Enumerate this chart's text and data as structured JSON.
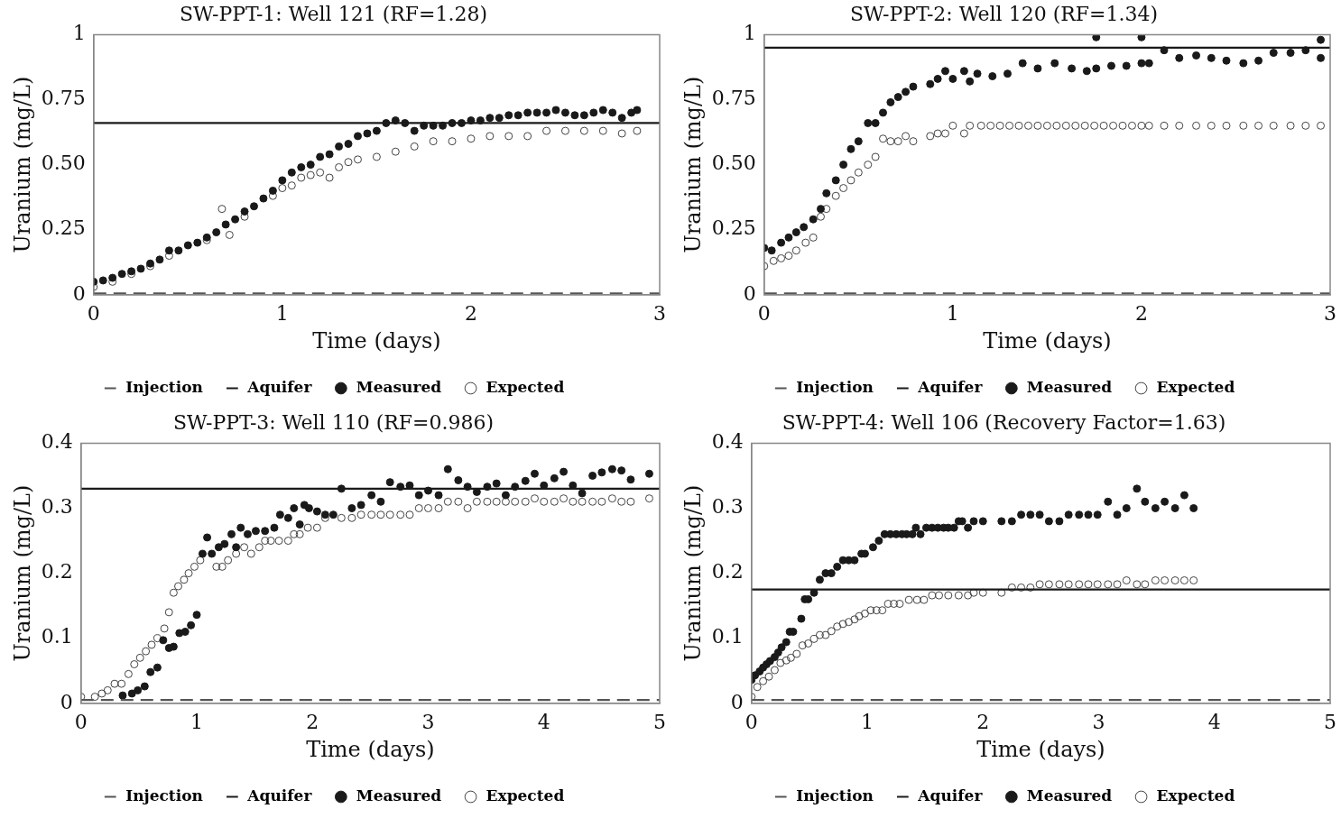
{
  "chart_data": [
    {
      "type": "scatter",
      "title": "SW-PPT-1: Well 121 (RF=1.28)",
      "xlabel": "Time (days)",
      "ylabel": "Uranium (mg/L)",
      "xlim": [
        0,
        3
      ],
      "xticks": [
        0,
        1,
        2,
        3
      ],
      "ylim": [
        0,
        1
      ],
      "yticks": [
        0,
        0.25,
        {
          "value": 0.5,
          "label": "0.50"
        },
        0.75,
        1
      ],
      "grid": false,
      "legend": "bottom",
      "series": [
        {
          "name": "Injection",
          "type": "line",
          "color": "#555555",
          "line_style": "dashed",
          "marker": "none",
          "x": [
            0,
            3
          ],
          "values": [
            0.005,
            0.005
          ]
        },
        {
          "name": "Aquifer",
          "type": "line",
          "color": "#1a1a1a",
          "line_style": "solid",
          "marker": "none",
          "x": [
            0,
            3
          ],
          "values": [
            0.66,
            0.66
          ]
        },
        {
          "name": "Measured",
          "type": "scatter",
          "color": "#1a1a1a",
          "marker": "circle",
          "x": [
            0,
            0.05,
            0.1,
            0.15,
            0.2,
            0.25,
            0.3,
            0.35,
            0.4,
            0.45,
            0.5,
            0.55,
            0.6,
            0.65,
            0.7,
            0.75,
            0.8,
            0.85,
            0.9,
            0.95,
            1.0,
            1.05,
            1.1,
            1.15,
            1.2,
            1.25,
            1.3,
            1.35,
            1.4,
            1.45,
            1.5,
            1.55,
            1.6,
            1.65,
            1.7,
            1.75,
            1.8,
            1.85,
            1.9,
            1.95,
            2.0,
            2.05,
            2.1,
            2.15,
            2.2,
            2.25,
            2.3,
            2.35,
            2.4,
            2.45,
            2.5,
            2.55,
            2.6,
            2.65,
            2.7,
            2.75,
            2.8,
            2.85,
            2.88
          ],
          "values": [
            0.05,
            0.055,
            0.065,
            0.08,
            0.09,
            0.1,
            0.12,
            0.135,
            0.17,
            0.17,
            0.19,
            0.2,
            0.22,
            0.24,
            0.27,
            0.29,
            0.32,
            0.34,
            0.37,
            0.4,
            0.44,
            0.47,
            0.49,
            0.5,
            0.53,
            0.54,
            0.57,
            0.58,
            0.61,
            0.62,
            0.63,
            0.66,
            0.67,
            0.66,
            0.63,
            0.65,
            0.65,
            0.65,
            0.66,
            0.66,
            0.67,
            0.67,
            0.68,
            0.68,
            0.69,
            0.69,
            0.7,
            0.7,
            0.7,
            0.71,
            0.7,
            0.69,
            0.69,
            0.7,
            0.71,
            0.7,
            0.68,
            0.7,
            0.71
          ]
        },
        {
          "name": "Expected",
          "type": "scatter",
          "color": "#444444",
          "marker": "circle",
          "x": [
            0,
            0.1,
            0.2,
            0.3,
            0.4,
            0.5,
            0.6,
            0.68,
            0.72,
            0.8,
            0.9,
            0.95,
            1.0,
            1.05,
            1.1,
            1.15,
            1.2,
            1.25,
            1.3,
            1.35,
            1.4,
            1.5,
            1.6,
            1.7,
            1.8,
            1.9,
            2.0,
            2.1,
            2.2,
            2.3,
            2.4,
            2.5,
            2.6,
            2.7,
            2.8,
            2.88
          ],
          "values": [
            0.03,
            0.05,
            0.08,
            0.11,
            0.15,
            null,
            0.21,
            0.33,
            0.23,
            0.3,
            null,
            0.38,
            0.41,
            0.42,
            0.45,
            0.46,
            0.47,
            0.45,
            0.49,
            0.51,
            0.52,
            0.53,
            0.55,
            0.57,
            0.59,
            0.59,
            0.6,
            0.61,
            0.61,
            0.61,
            0.63,
            0.63,
            0.63,
            0.63,
            0.62,
            0.63
          ]
        }
      ]
    },
    {
      "type": "scatter",
      "title": "SW-PPT-2: Well 120 (RF=1.34)",
      "xlabel": "Time (days)",
      "ylabel": "Uranium (mg/L)",
      "xlim": [
        0,
        3
      ],
      "xticks": [
        0,
        1,
        2,
        3
      ],
      "ylim": [
        0,
        1
      ],
      "yticks": [
        0,
        0.25,
        {
          "value": 0.5,
          "label": "0.50"
        },
        0.75,
        1
      ],
      "grid": false,
      "legend": "bottom",
      "series": [
        {
          "name": "Injection",
          "type": "line",
          "color": "#555555",
          "line_style": "dashed",
          "marker": "none",
          "x": [
            0,
            3
          ],
          "values": [
            0.005,
            0.005
          ]
        },
        {
          "name": "Aquifer",
          "type": "line",
          "color": "#1a1a1a",
          "line_style": "solid",
          "marker": "none",
          "x": [
            0,
            3
          ],
          "values": [
            0.95,
            0.95
          ]
        },
        {
          "name": "Measured",
          "type": "scatter",
          "color": "#1a1a1a",
          "marker": "circle",
          "x": [
            0,
            0.04,
            0.09,
            0.13,
            0.17,
            0.21,
            0.26,
            0.3,
            0.33,
            0.38,
            0.42,
            0.46,
            0.5,
            0.55,
            0.59,
            0.63,
            0.67,
            0.71,
            0.75,
            0.79,
            0.88,
            0.92,
            0.96,
            1.0,
            1.06,
            1.09,
            1.13,
            1.21,
            1.29,
            1.37,
            1.45,
            1.54,
            1.63,
            1.71,
            1.76,
            1.76,
            1.84,
            1.92,
            2.0,
            2.0,
            2.04,
            2.12,
            2.2,
            2.29,
            2.37,
            2.45,
            2.54,
            2.62,
            2.7,
            2.79,
            2.87,
            2.95,
            2.95
          ],
          "values": [
            0.18,
            0.17,
            0.2,
            0.22,
            0.24,
            0.26,
            0.29,
            0.33,
            0.39,
            0.44,
            0.5,
            0.56,
            0.59,
            0.66,
            0.66,
            0.7,
            0.74,
            0.76,
            0.78,
            0.8,
            0.81,
            0.83,
            0.86,
            0.83,
            0.86,
            0.82,
            0.85,
            0.84,
            0.85,
            0.89,
            0.87,
            0.89,
            0.87,
            0.86,
            0.99,
            0.87,
            0.88,
            0.88,
            0.99,
            0.89,
            0.89,
            0.94,
            0.91,
            0.92,
            0.91,
            0.9,
            0.89,
            0.9,
            0.93,
            0.93,
            0.94,
            0.98,
            0.91
          ]
        },
        {
          "name": "Expected",
          "type": "scatter",
          "color": "#444444",
          "marker": "circle",
          "x": [
            0,
            0.05,
            0.09,
            0.13,
            0.17,
            0.22,
            0.26,
            0.3,
            0.33,
            0.38,
            0.42,
            0.46,
            0.5,
            0.55,
            0.59,
            0.63,
            0.67,
            0.71,
            0.75,
            0.79,
            0.88,
            0.92,
            0.96,
            1.0,
            1.06,
            1.09,
            1.15,
            1.2,
            1.25,
            1.3,
            1.35,
            1.4,
            1.45,
            1.5,
            1.55,
            1.6,
            1.65,
            1.7,
            1.75,
            1.8,
            1.85,
            1.9,
            1.95,
            2.0,
            2.04,
            2.12,
            2.2,
            2.29,
            2.37,
            2.45,
            2.54,
            2.62,
            2.7,
            2.79,
            2.87,
            2.95
          ],
          "values": [
            0.11,
            0.13,
            0.14,
            0.15,
            0.17,
            0.2,
            0.22,
            0.3,
            0.33,
            0.38,
            0.41,
            0.44,
            0.47,
            0.5,
            0.53,
            0.6,
            0.59,
            0.59,
            0.61,
            0.59,
            0.61,
            0.62,
            0.62,
            0.65,
            0.62,
            0.65,
            0.65,
            0.65,
            0.65,
            0.65,
            0.65,
            0.65,
            0.65,
            0.65,
            0.65,
            0.65,
            0.65,
            0.65,
            0.65,
            0.65,
            0.65,
            0.65,
            0.65,
            0.65,
            0.65,
            0.65,
            0.65,
            0.65,
            0.65,
            0.65,
            0.65,
            0.65,
            0.65,
            0.65,
            0.65,
            0.65
          ]
        }
      ]
    },
    {
      "type": "scatter",
      "title": "SW-PPT-3: Well 110 (RF=0.986)",
      "xlabel": "Time (days)",
      "ylabel": "Uranium (mg/L)",
      "xlim": [
        0,
        5
      ],
      "xticks": [
        0,
        1,
        2,
        3,
        4,
        5
      ],
      "ylim": [
        0,
        0.4
      ],
      "yticks": [
        0,
        0.1,
        0.2,
        0.3,
        0.4
      ],
      "grid": false,
      "legend": "bottom",
      "series": [
        {
          "name": "Injection",
          "type": "line",
          "color": "#555555",
          "line_style": "dashed",
          "marker": "none",
          "x": [
            0,
            5
          ],
          "values": [
            0.005,
            0.005
          ]
        },
        {
          "name": "Aquifer",
          "type": "line",
          "color": "#1a1a1a",
          "line_style": "solid",
          "marker": "none",
          "x": [
            0,
            5
          ],
          "values": [
            0.33,
            0.33
          ]
        },
        {
          "name": "Measured",
          "type": "scatter",
          "color": "#1a1a1a",
          "marker": "circle",
          "x": [
            0.36,
            0.44,
            0.49,
            0.55,
            0.6,
            0.66,
            0.71,
            0.76,
            0.8,
            0.85,
            0.9,
            0.95,
            1.0,
            1.05,
            1.09,
            1.13,
            1.19,
            1.24,
            1.3,
            1.34,
            1.38,
            1.44,
            1.51,
            1.59,
            1.67,
            1.72,
            1.79,
            1.84,
            1.89,
            1.93,
            1.97,
            2.04,
            2.11,
            2.18,
            2.25,
            2.34,
            2.42,
            2.51,
            2.59,
            2.67,
            2.76,
            2.84,
            2.92,
            3.0,
            3.09,
            3.17,
            3.26,
            3.34,
            3.42,
            3.51,
            3.59,
            3.67,
            3.75,
            3.84,
            3.92,
            4.0,
            4.09,
            4.17,
            4.25,
            4.33,
            4.42,
            4.5,
            4.59,
            4.67,
            4.75,
            4.91
          ],
          "values": [
            0.012,
            0.015,
            0.02,
            0.026,
            0.048,
            0.055,
            0.097,
            0.085,
            0.087,
            0.108,
            0.11,
            0.12,
            0.136,
            0.23,
            0.255,
            0.23,
            0.24,
            0.245,
            0.26,
            0.24,
            0.27,
            0.26,
            0.265,
            0.265,
            0.27,
            0.29,
            0.285,
            0.3,
            0.275,
            0.305,
            0.3,
            0.295,
            0.29,
            0.29,
            0.33,
            0.3,
            0.305,
            0.32,
            0.31,
            0.34,
            0.333,
            0.335,
            0.32,
            0.327,
            0.32,
            0.36,
            0.343,
            0.333,
            0.325,
            0.333,
            0.338,
            0.32,
            0.333,
            0.342,
            0.353,
            0.335,
            0.346,
            0.356,
            0.335,
            0.323,
            0.35,
            0.355,
            0.36,
            0.358,
            0.344,
            0.353
          ]
        },
        {
          "name": "Expected",
          "type": "scatter",
          "color": "#444444",
          "marker": "circle",
          "x": [
            0,
            0.12,
            0.18,
            0.23,
            0.29,
            0.35,
            0.41,
            0.46,
            0.51,
            0.56,
            0.61,
            0.66,
            0.72,
            0.76,
            0.8,
            0.84,
            0.89,
            0.93,
            0.98,
            1.03,
            1.17,
            1.22,
            1.27,
            1.34,
            1.41,
            1.47,
            1.54,
            1.59,
            1.64,
            1.71,
            1.79,
            1.84,
            1.89,
            1.96,
            2.04,
            2.11,
            2.25,
            2.34,
            2.42,
            2.51,
            2.59,
            2.67,
            2.76,
            2.84,
            2.92,
            3.0,
            3.09,
            3.17,
            3.26,
            3.34,
            3.42,
            3.51,
            3.59,
            3.67,
            3.75,
            3.84,
            3.92,
            4.0,
            4.09,
            4.17,
            4.25,
            4.33,
            4.42,
            4.5,
            4.59,
            4.67,
            4.75,
            4.91
          ],
          "values": [
            0.01,
            0.01,
            0.015,
            0.02,
            0.03,
            0.03,
            0.045,
            0.06,
            0.07,
            0.08,
            0.09,
            0.1,
            0.115,
            0.14,
            0.17,
            0.18,
            0.19,
            0.2,
            0.21,
            0.22,
            0.21,
            0.21,
            0.22,
            0.23,
            0.24,
            0.23,
            0.24,
            0.25,
            0.25,
            0.25,
            0.25,
            0.26,
            0.26,
            0.27,
            0.27,
            0.285,
            0.285,
            0.285,
            0.29,
            0.29,
            0.29,
            0.29,
            0.29,
            0.29,
            0.3,
            0.3,
            0.3,
            0.31,
            0.31,
            0.3,
            0.31,
            0.31,
            0.31,
            0.31,
            0.31,
            0.31,
            0.315,
            0.31,
            0.31,
            0.315,
            0.31,
            0.31,
            0.31,
            0.31,
            0.315,
            0.31,
            0.31,
            0.315
          ]
        }
      ]
    },
    {
      "type": "scatter",
      "title": "SW-PPT-4: Well 106 (Recovery Factor=1.63)",
      "xlabel": "Time (days)",
      "ylabel": "Uranium (mg/L)",
      "xlim": [
        0,
        5
      ],
      "xticks": [
        0,
        1,
        2,
        3,
        4,
        5
      ],
      "ylim": [
        0,
        0.4
      ],
      "yticks": [
        0,
        0.1,
        0.2,
        0.3,
        0.4
      ],
      "grid": false,
      "legend": "bottom",
      "series": [
        {
          "name": "Injection",
          "type": "line",
          "color": "#555555",
          "line_style": "dashed",
          "marker": "none",
          "x": [
            0,
            5
          ],
          "values": [
            0.005,
            0.005
          ]
        },
        {
          "name": "Aquifer",
          "type": "line",
          "color": "#1a1a1a",
          "line_style": "solid",
          "marker": "none",
          "x": [
            0,
            5
          ],
          "values": [
            0.175,
            0.175
          ]
        },
        {
          "name": "Measured",
          "type": "scatter",
          "color": "#1a1a1a",
          "marker": "circle",
          "x": [
            0,
            0.03,
            0.07,
            0.1,
            0.13,
            0.16,
            0.2,
            0.23,
            0.26,
            0.3,
            0.33,
            0.36,
            0.43,
            0.46,
            0.49,
            0.54,
            0.59,
            0.64,
            0.69,
            0.74,
            0.79,
            0.84,
            0.89,
            0.95,
            0.98,
            1.05,
            1.1,
            1.15,
            1.2,
            1.25,
            1.3,
            1.34,
            1.39,
            1.42,
            1.46,
            1.51,
            1.56,
            1.61,
            1.66,
            1.7,
            1.75,
            1.79,
            1.82,
            1.87,
            1.92,
            2.0,
            2.16,
            2.25,
            2.33,
            2.41,
            2.49,
            2.57,
            2.66,
            2.74,
            2.83,
            2.91,
            2.99,
            3.08,
            3.16,
            3.24,
            3.33,
            3.4,
            3.49,
            3.57,
            3.66,
            3.74,
            3.82
          ],
          "values": [
            0.036,
            0.043,
            0.049,
            0.055,
            0.06,
            0.065,
            0.071,
            0.078,
            0.086,
            0.094,
            0.11,
            0.11,
            0.13,
            0.16,
            0.16,
            0.17,
            0.19,
            0.2,
            0.2,
            0.21,
            0.22,
            0.22,
            0.22,
            0.23,
            0.23,
            0.24,
            0.25,
            0.26,
            0.26,
            0.26,
            0.26,
            0.26,
            0.26,
            0.27,
            0.26,
            0.27,
            0.27,
            0.27,
            0.27,
            0.27,
            0.27,
            0.28,
            0.28,
            0.27,
            0.28,
            0.28,
            0.28,
            0.28,
            0.29,
            0.29,
            0.29,
            0.28,
            0.28,
            0.29,
            0.29,
            0.29,
            0.29,
            0.31,
            0.29,
            0.3,
            0.33,
            0.31,
            0.3,
            0.31,
            0.3,
            0.32,
            0.3
          ]
        },
        {
          "name": "Expected",
          "type": "scatter",
          "color": "#444444",
          "marker": "circle",
          "x": [
            0,
            0.05,
            0.1,
            0.15,
            0.2,
            0.25,
            0.3,
            0.34,
            0.39,
            0.44,
            0.49,
            0.54,
            0.59,
            0.64,
            0.69,
            0.74,
            0.79,
            0.84,
            0.89,
            0.93,
            0.98,
            1.03,
            1.08,
            1.13,
            1.18,
            1.23,
            1.28,
            1.36,
            1.43,
            1.49,
            1.56,
            1.62,
            1.7,
            1.79,
            1.87,
            1.92,
            2.0,
            2.16,
            2.25,
            2.33,
            2.41,
            2.49,
            2.57,
            2.66,
            2.74,
            2.83,
            2.91,
            2.99,
            3.08,
            3.16,
            3.24,
            3.33,
            3.4,
            3.49,
            3.57,
            3.66,
            3.74,
            3.82
          ],
          "values": [
            0.01,
            0.025,
            0.034,
            0.041,
            0.051,
            0.062,
            0.066,
            0.07,
            0.076,
            0.089,
            0.092,
            0.099,
            0.105,
            0.105,
            0.111,
            0.118,
            0.122,
            0.125,
            0.129,
            0.134,
            0.138,
            0.143,
            0.143,
            0.143,
            0.153,
            0.153,
            0.153,
            0.159,
            0.159,
            0.159,
            0.166,
            0.166,
            0.166,
            0.166,
            0.166,
            0.17,
            0.17,
            0.17,
            0.178,
            0.178,
            0.178,
            0.183,
            0.183,
            0.183,
            0.183,
            0.183,
            0.183,
            0.183,
            0.183,
            0.183,
            0.189,
            0.183,
            0.183,
            0.189,
            0.189,
            0.189,
            0.189,
            0.189
          ]
        }
      ]
    }
  ]
}
